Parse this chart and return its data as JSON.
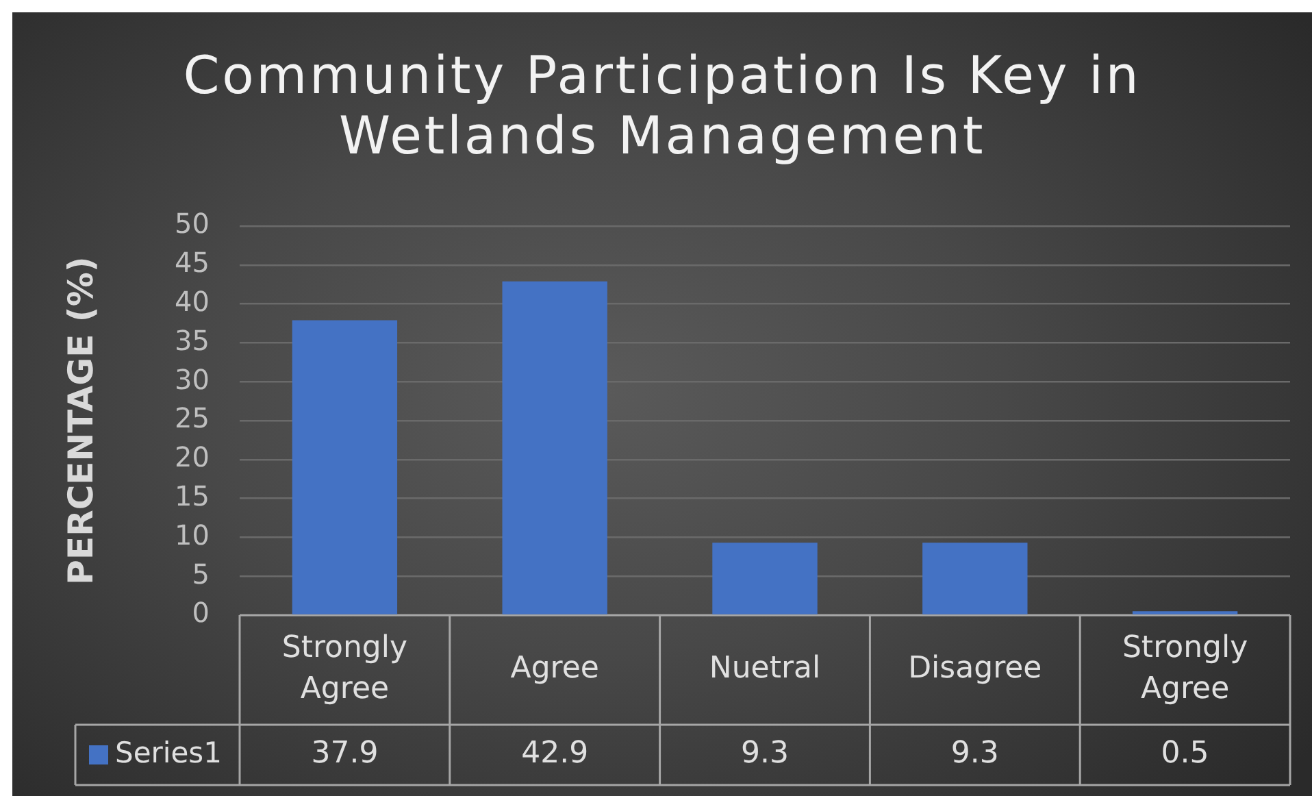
{
  "chart_data": {
    "type": "bar",
    "title": "Community Participation Is Key in Wetlands Management",
    "ylabel": "PERCENTAGE (%)",
    "categories": [
      "Strongly Agree",
      "Agree",
      "Nuetral",
      "Disagree",
      "Strongly Agree"
    ],
    "series": [
      {
        "name": "Series1",
        "color": "#4472c4",
        "values": [
          37.9,
          42.9,
          9.3,
          9.3,
          0.5
        ]
      }
    ],
    "ylim": [
      0,
      50
    ],
    "yticks": [
      0,
      5,
      10,
      15,
      20,
      25,
      30,
      35,
      40,
      45,
      50
    ],
    "grid": "y",
    "legend": "bottom",
    "data_labels": true
  }
}
